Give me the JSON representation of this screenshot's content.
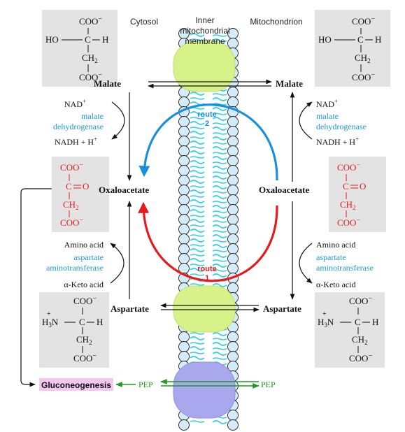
{
  "regions": {
    "cytosol": "Cytosol",
    "membrane": [
      "Inner",
      "mitochondrial",
      "membrane"
    ],
    "mitochondrion": "Mitochondrion"
  },
  "metabolites": {
    "malate": "Malate",
    "oxaloacetate": "Oxaloacetate",
    "aspartate": "Aspartate",
    "gluconeogenesis": "Gluconeogenesis",
    "pep": "PEP"
  },
  "reactions": {
    "nad": "NAD",
    "nad_sup": "+",
    "nadh": "NADH + H",
    "nadh_sup": "+",
    "malate_enzyme": [
      "malate",
      "dehydrogenase"
    ],
    "amino_acid": "Amino acid",
    "keto_acid": "α-Keto acid",
    "transaminase": [
      "aspartate",
      "aminotransferase"
    ]
  },
  "routes": {
    "route1": [
      "route",
      "1"
    ],
    "route2": [
      "route",
      "2"
    ]
  },
  "structures": {
    "coo": "COO",
    "minus": "−",
    "ho": "HO",
    "c": "C",
    "h": "H",
    "ch": "CH",
    "sub2": "2",
    "o": "O",
    "h3n": "H",
    "sub3": "3",
    "n": "N",
    "plus": "+",
    "dash": "—"
  },
  "colors": {
    "enzyme": "#1a9ad6",
    "route1": "#e8191d",
    "route2": "#1a8fe0",
    "oxaloacetate_struct": "#e8191d",
    "pep": "#1f9a1f",
    "gluconeogenesis_bg": "#f4c6f2",
    "membrane_lipid": "#2fd1e8",
    "transporter_top": "#d8f28a",
    "transporter_bottom": "#a9a8ee",
    "struct_box": "#e3e3e3"
  }
}
